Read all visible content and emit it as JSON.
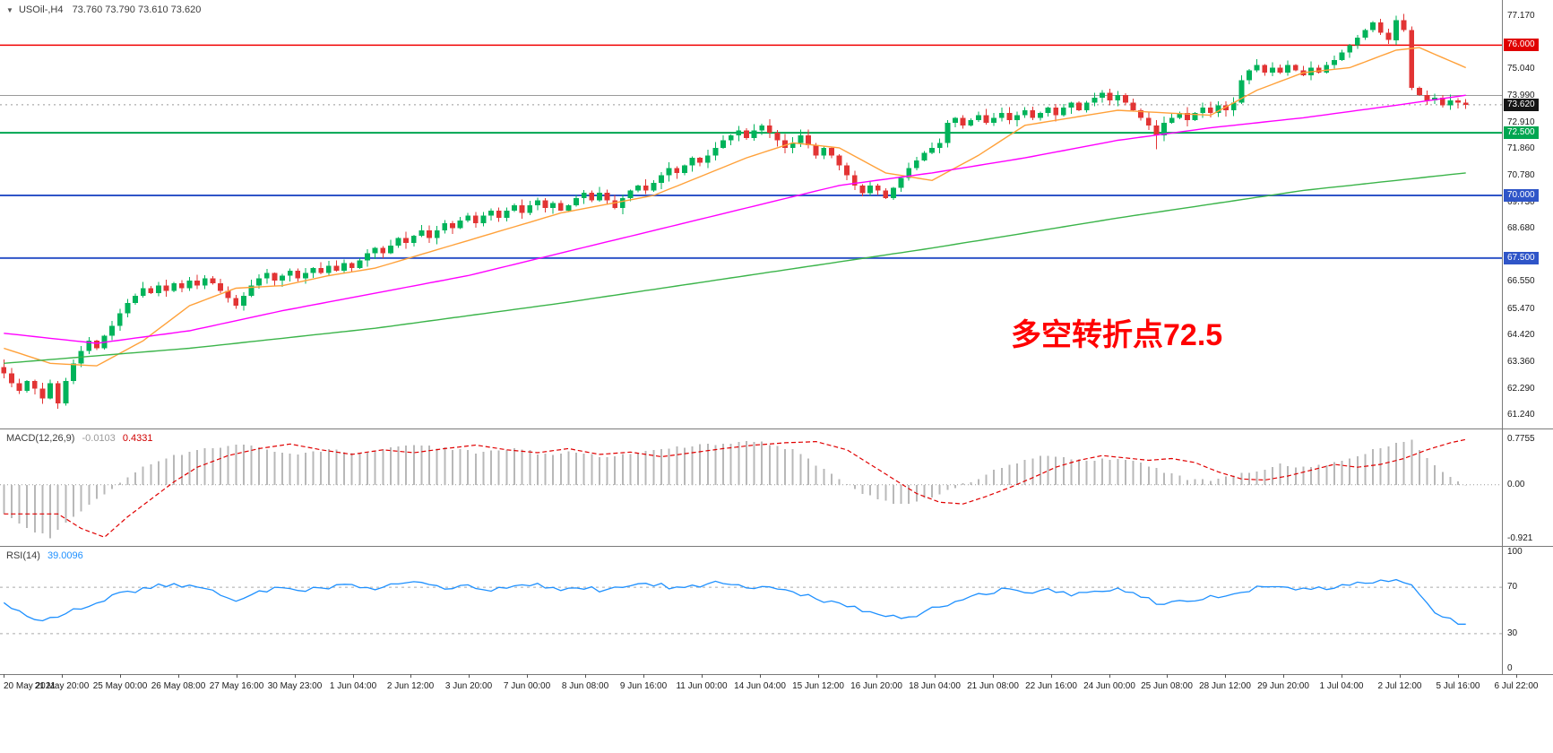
{
  "header": {
    "shift_icon": "▼",
    "symbol": "USOil-,H4",
    "ohlc": "73.760 73.790 73.610 73.620"
  },
  "annotation": {
    "text": "多空转折点72.5",
    "color": "#FF0000"
  },
  "indicators": {
    "macd": {
      "name": "MACD(12,26,9)",
      "value": "-0.0103",
      "signal": "0.4331"
    },
    "rsi": {
      "name": "RSI(14)",
      "value": "39.0096"
    }
  },
  "colors": {
    "bull": "#00B35A",
    "bear": "#E23434",
    "ma_fast": "#FFA13A",
    "ma_mid": "#FF00FF",
    "ma_slow": "#3BB44A",
    "macd_hist": "#B8B8B8",
    "macd_signal": "#E00000",
    "rsi_line": "#1E90FF",
    "level_red": "#F00000",
    "level_green": "#00A651",
    "level_blue": "#2F55C8",
    "gray_line": "#9A9A9A",
    "badge_black": "#141414"
  },
  "price_axis": {
    "range": {
      "min": 60.7,
      "max": 77.8
    },
    "ticks": [
      {
        "value": 77.17,
        "label": "77.170"
      },
      {
        "value": 75.04,
        "label": "75.040"
      },
      {
        "value": 73.99,
        "label": "73.990"
      },
      {
        "value": 72.91,
        "label": "72.910"
      },
      {
        "value": 71.86,
        "label": "71.860"
      },
      {
        "value": 70.78,
        "label": "70.780"
      },
      {
        "value": 69.73,
        "label": "69.730"
      },
      {
        "value": 68.68,
        "label": "68.680"
      },
      {
        "value": 66.55,
        "label": "66.550"
      },
      {
        "value": 65.47,
        "label": "65.470"
      },
      {
        "value": 64.42,
        "label": "64.420"
      },
      {
        "value": 63.36,
        "label": "63.360"
      },
      {
        "value": 62.29,
        "label": "62.290"
      },
      {
        "value": 61.24,
        "label": "61.240"
      }
    ],
    "badges": [
      {
        "value": 76.0,
        "label": "76.000",
        "bg": "#E00000"
      },
      {
        "value": 73.62,
        "label": "73.620",
        "bg": "#141414"
      },
      {
        "value": 72.5,
        "label": "72.500",
        "bg": "#00A651"
      },
      {
        "value": 70.0,
        "label": "70.000",
        "bg": "#2F55C8"
      },
      {
        "value": 67.5,
        "label": "67.500",
        "bg": "#2F55C8"
      }
    ]
  },
  "macd_axis": {
    "range": {
      "min": -1.05,
      "max": 0.95
    },
    "ticks": [
      {
        "value": 0.7755,
        "label": "0.7755"
      },
      {
        "value": 0.0,
        "label": "0.00"
      },
      {
        "value": -0.921,
        "label": "-0.921"
      }
    ]
  },
  "rsi_axis": {
    "range": {
      "min": -5,
      "max": 105
    },
    "ticks": [
      {
        "value": 100,
        "label": "100"
      },
      {
        "value": 70,
        "label": "70"
      },
      {
        "value": 30,
        "label": "30"
      },
      {
        "value": 0,
        "label": "0"
      }
    ],
    "dashed_levels": [
      70,
      30
    ]
  },
  "time_axis": {
    "labels": [
      "20 May 2021",
      "21 May 20:00",
      "25 May 00:00",
      "26 May 08:00",
      "27 May 16:00",
      "30 May 23:00",
      "1 Jun 04:00",
      "2 Jun 12:00",
      "3 Jun 20:00",
      "7 Jun 00:00",
      "8 Jun 08:00",
      "9 Jun 16:00",
      "11 Jun 00:00",
      "14 Jun 04:00",
      "15 Jun 12:00",
      "16 Jun 20:00",
      "18 Jun 04:00",
      "21 Jun 08:00",
      "22 Jun 16:00",
      "24 Jun 00:00",
      "25 Jun 08:00",
      "28 Jun 12:00",
      "29 Jun 20:00",
      "1 Jul 04:00",
      "2 Jul 12:00",
      "5 Jul 16:00",
      "6 Jul 22:00"
    ]
  },
  "chart_data": [
    {
      "type": "candlestick",
      "symbol": "USOil-",
      "timeframe": "H4",
      "title": "USOil-,H4",
      "last_bar": {
        "open": 73.76,
        "high": 73.79,
        "low": 73.61,
        "close": 73.62
      },
      "ylim": [
        60.7,
        77.8
      ],
      "x_start_label": "20 May 2021",
      "x_end_label": "6 Jul 22:00",
      "closes": [
        62.9,
        62.5,
        62.2,
        62.6,
        62.3,
        61.9,
        62.5,
        61.7,
        62.6,
        63.3,
        63.8,
        64.2,
        63.9,
        64.4,
        64.8,
        65.3,
        65.7,
        66.0,
        66.3,
        66.1,
        66.4,
        66.2,
        66.5,
        66.3,
        66.6,
        66.4,
        66.7,
        66.5,
        66.2,
        65.9,
        65.6,
        66.0,
        66.4,
        66.7,
        66.9,
        66.6,
        66.8,
        67.0,
        66.7,
        66.9,
        67.1,
        66.9,
        67.2,
        67.0,
        67.3,
        67.1,
        67.4,
        67.7,
        67.9,
        67.7,
        68.0,
        68.3,
        68.1,
        68.4,
        68.6,
        68.3,
        68.6,
        68.9,
        68.7,
        69.0,
        69.2,
        68.9,
        69.2,
        69.4,
        69.1,
        69.4,
        69.6,
        69.3,
        69.6,
        69.8,
        69.5,
        69.7,
        69.4,
        69.6,
        69.9,
        70.1,
        69.8,
        70.1,
        69.8,
        69.5,
        69.9,
        70.2,
        70.4,
        70.2,
        70.5,
        70.8,
        71.1,
        70.9,
        71.2,
        71.5,
        71.3,
        71.6,
        71.9,
        72.2,
        72.4,
        72.6,
        72.3,
        72.6,
        72.8,
        72.5,
        72.2,
        71.9,
        72.1,
        72.4,
        72.0,
        71.6,
        71.9,
        71.6,
        71.2,
        70.8,
        70.4,
        70.1,
        70.4,
        70.2,
        69.9,
        70.3,
        70.7,
        71.1,
        71.4,
        71.7,
        71.9,
        72.1,
        72.9,
        73.1,
        72.8,
        73.0,
        73.2,
        72.9,
        73.1,
        73.3,
        73.0,
        73.2,
        73.4,
        73.1,
        73.3,
        73.5,
        73.2,
        73.5,
        73.7,
        73.4,
        73.7,
        73.9,
        74.1,
        73.8,
        74.0,
        73.7,
        73.4,
        73.1,
        72.8,
        72.4,
        72.9,
        73.1,
        73.3,
        73.0,
        73.3,
        73.5,
        73.3,
        73.6,
        73.4,
        73.7,
        74.6,
        75.0,
        75.2,
        74.9,
        75.1,
        74.9,
        75.2,
        75.0,
        74.8,
        75.1,
        74.9,
        75.2,
        75.4,
        75.7,
        76.0,
        76.3,
        76.6,
        76.9,
        76.5,
        76.2,
        77.0,
        76.6,
        74.3,
        74.0,
        73.8,
        73.9,
        73.6,
        73.8,
        73.7,
        73.62
      ],
      "wick_overrides": {
        "0": {
          "up": 0.3
        },
        "7": {
          "down": 0.22
        },
        "149": {
          "down": 0.55
        },
        "180": {
          "up": 0.17
        }
      },
      "levels": [
        {
          "value": 76.0,
          "color": "#F00000",
          "width": 1.5,
          "style": "solid"
        },
        {
          "value": 73.99,
          "color": "#9A9A9A",
          "width": 1.0,
          "style": "solid"
        },
        {
          "value": 73.62,
          "color": "#999999",
          "width": 1.0,
          "style": "dotted"
        },
        {
          "value": 72.5,
          "color": "#00A651",
          "width": 2.0,
          "style": "solid"
        },
        {
          "value": 70.0,
          "color": "#2F55C8",
          "width": 2.0,
          "style": "solid"
        },
        {
          "value": 67.5,
          "color": "#2F55C8",
          "width": 2.0,
          "style": "solid"
        }
      ],
      "moving_averages": [
        {
          "name": "ma-fast-orange",
          "color": "#FFA13A",
          "anchors": [
            [
              0,
              63.9
            ],
            [
              6,
              63.3
            ],
            [
              12,
              63.2
            ],
            [
              18,
              64.2
            ],
            [
              24,
              65.6
            ],
            [
              30,
              66.3
            ],
            [
              36,
              66.4
            ],
            [
              42,
              66.8
            ],
            [
              48,
              67.1
            ],
            [
              60,
              68.2
            ],
            [
              72,
              69.3
            ],
            [
              84,
              70.0
            ],
            [
              96,
              71.5
            ],
            [
              102,
              72.1
            ],
            [
              108,
              71.9
            ],
            [
              114,
              70.9
            ],
            [
              120,
              70.6
            ],
            [
              126,
              71.6
            ],
            [
              132,
              72.8
            ],
            [
              144,
              73.4
            ],
            [
              150,
              73.3
            ],
            [
              156,
              73.2
            ],
            [
              162,
              74.2
            ],
            [
              168,
              74.9
            ],
            [
              174,
              75.1
            ],
            [
              180,
              75.8
            ],
            [
              183,
              75.9
            ],
            [
              186,
              75.5
            ],
            [
              189,
              75.1
            ]
          ]
        },
        {
          "name": "ma-mid-magenta",
          "color": "#FF00FF",
          "anchors": [
            [
              0,
              64.5
            ],
            [
              12,
              64.1
            ],
            [
              24,
              64.6
            ],
            [
              36,
              65.4
            ],
            [
              48,
              66.1
            ],
            [
              60,
              66.8
            ],
            [
              72,
              67.7
            ],
            [
              84,
              68.6
            ],
            [
              96,
              69.5
            ],
            [
              108,
              70.4
            ],
            [
              120,
              70.9
            ],
            [
              132,
              71.5
            ],
            [
              144,
              72.2
            ],
            [
              156,
              72.7
            ],
            [
              168,
              73.1
            ],
            [
              180,
              73.6
            ],
            [
              189,
              74.0
            ]
          ]
        },
        {
          "name": "ma-slow-green",
          "color": "#3BB44A",
          "anchors": [
            [
              0,
              63.3
            ],
            [
              24,
              63.9
            ],
            [
              48,
              64.7
            ],
            [
              72,
              65.7
            ],
            [
              96,
              66.8
            ],
            [
              120,
              67.9
            ],
            [
              144,
              69.1
            ],
            [
              168,
              70.2
            ],
            [
              189,
              70.9
            ]
          ]
        }
      ]
    },
    {
      "type": "bar",
      "name": "MACD(12,26,9)",
      "current_value": -0.0103,
      "current_signal": 0.4331,
      "ylim": [
        -0.921,
        0.7755
      ],
      "anchors": [
        [
          0,
          -0.5
        ],
        [
          3,
          -0.75
        ],
        [
          6,
          -0.9
        ],
        [
          9,
          -0.55
        ],
        [
          12,
          -0.25
        ],
        [
          15,
          0.05
        ],
        [
          18,
          0.3
        ],
        [
          22,
          0.5
        ],
        [
          26,
          0.62
        ],
        [
          30,
          0.7
        ],
        [
          34,
          0.6
        ],
        [
          38,
          0.52
        ],
        [
          42,
          0.6
        ],
        [
          46,
          0.55
        ],
        [
          50,
          0.62
        ],
        [
          54,
          0.68
        ],
        [
          58,
          0.6
        ],
        [
          62,
          0.55
        ],
        [
          66,
          0.62
        ],
        [
          70,
          0.52
        ],
        [
          74,
          0.56
        ],
        [
          78,
          0.48
        ],
        [
          82,
          0.55
        ],
        [
          86,
          0.62
        ],
        [
          90,
          0.68
        ],
        [
          94,
          0.72
        ],
        [
          98,
          0.74
        ],
        [
          102,
          0.6
        ],
        [
          105,
          0.35
        ],
        [
          108,
          0.1
        ],
        [
          111,
          -0.15
        ],
        [
          114,
          -0.3
        ],
        [
          117,
          -0.33
        ],
        [
          120,
          -0.2
        ],
        [
          123,
          -0.05
        ],
        [
          126,
          0.12
        ],
        [
          129,
          0.3
        ],
        [
          132,
          0.42
        ],
        [
          135,
          0.5
        ],
        [
          138,
          0.46
        ],
        [
          141,
          0.42
        ],
        [
          144,
          0.45
        ],
        [
          147,
          0.38
        ],
        [
          150,
          0.22
        ],
        [
          153,
          0.1
        ],
        [
          156,
          0.08
        ],
        [
          159,
          0.15
        ],
        [
          162,
          0.25
        ],
        [
          165,
          0.35
        ],
        [
          168,
          0.3
        ],
        [
          171,
          0.35
        ],
        [
          174,
          0.45
        ],
        [
          177,
          0.6
        ],
        [
          180,
          0.72
        ],
        [
          182,
          0.7755
        ],
        [
          184,
          0.45
        ],
        [
          186,
          0.2
        ],
        [
          188,
          0.05
        ],
        [
          189,
          -0.0103
        ]
      ]
    },
    {
      "type": "line",
      "name": "RSI(14)",
      "current_value": 39.0096,
      "ylim": [
        0,
        100
      ],
      "levels": [
        70,
        30
      ],
      "anchors": [
        [
          0,
          55
        ],
        [
          3,
          45
        ],
        [
          6,
          42
        ],
        [
          9,
          50
        ],
        [
          12,
          58
        ],
        [
          15,
          64
        ],
        [
          18,
          69
        ],
        [
          21,
          72
        ],
        [
          24,
          70
        ],
        [
          27,
          66
        ],
        [
          30,
          60
        ],
        [
          33,
          66
        ],
        [
          36,
          71
        ],
        [
          39,
          68
        ],
        [
          42,
          70
        ],
        [
          45,
          73
        ],
        [
          48,
          69
        ],
        [
          51,
          72
        ],
        [
          54,
          74
        ],
        [
          57,
          70
        ],
        [
          60,
          72
        ],
        [
          63,
          68
        ],
        [
          66,
          71
        ],
        [
          69,
          73
        ],
        [
          72,
          66
        ],
        [
          75,
          70
        ],
        [
          78,
          67
        ],
        [
          81,
          71
        ],
        [
          84,
          73
        ],
        [
          87,
          69
        ],
        [
          90,
          72
        ],
        [
          93,
          74
        ],
        [
          96,
          70
        ],
        [
          99,
          72
        ],
        [
          102,
          66
        ],
        [
          105,
          60
        ],
        [
          108,
          56
        ],
        [
          111,
          50
        ],
        [
          114,
          46
        ],
        [
          117,
          44
        ],
        [
          120,
          52
        ],
        [
          123,
          58
        ],
        [
          126,
          63
        ],
        [
          129,
          68
        ],
        [
          132,
          65
        ],
        [
          135,
          67
        ],
        [
          138,
          63
        ],
        [
          141,
          66
        ],
        [
          144,
          69
        ],
        [
          147,
          62
        ],
        [
          150,
          55
        ],
        [
          153,
          58
        ],
        [
          156,
          61
        ],
        [
          159,
          64
        ],
        [
          162,
          70
        ],
        [
          165,
          72
        ],
        [
          168,
          68
        ],
        [
          171,
          70
        ],
        [
          174,
          72
        ],
        [
          177,
          74
        ],
        [
          180,
          76
        ],
        [
          182,
          72
        ],
        [
          184,
          55
        ],
        [
          186,
          44
        ],
        [
          188,
          40
        ],
        [
          189,
          39
        ]
      ]
    }
  ]
}
